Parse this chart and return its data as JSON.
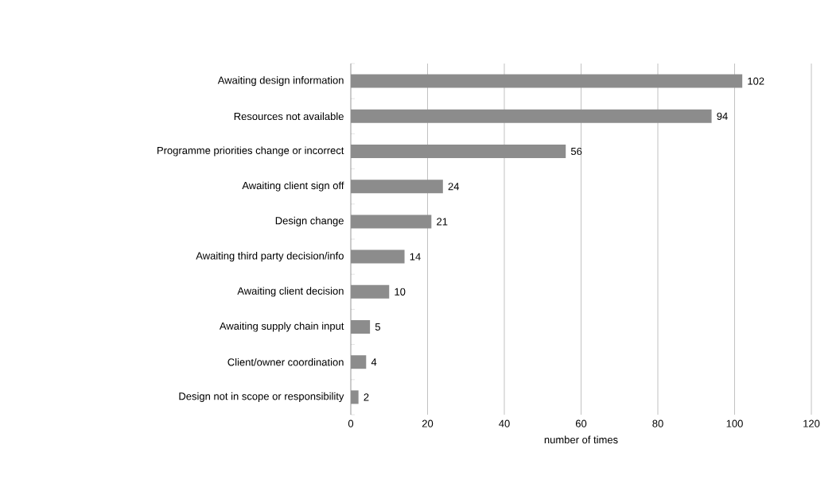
{
  "chart_data": {
    "type": "bar",
    "orientation": "horizontal",
    "xlabel": "number of times",
    "categories": [
      "Awaiting design information",
      "Resources not available",
      "Programme priorities change or incorrect",
      "Awaiting client sign off",
      "Design change",
      "Awaiting third party decision/info",
      "Awaiting client decision",
      "Awaiting supply chain input",
      "Client/owner coordination",
      "Design not in scope or responsibility"
    ],
    "values": [
      102,
      94,
      56,
      24,
      21,
      14,
      10,
      5,
      4,
      2
    ],
    "color": "#8c8c8c",
    "xlim": [
      0,
      120
    ],
    "xticks": [
      0,
      20,
      40,
      60,
      80,
      100,
      120
    ],
    "grid": "x",
    "data_labels": true
  }
}
